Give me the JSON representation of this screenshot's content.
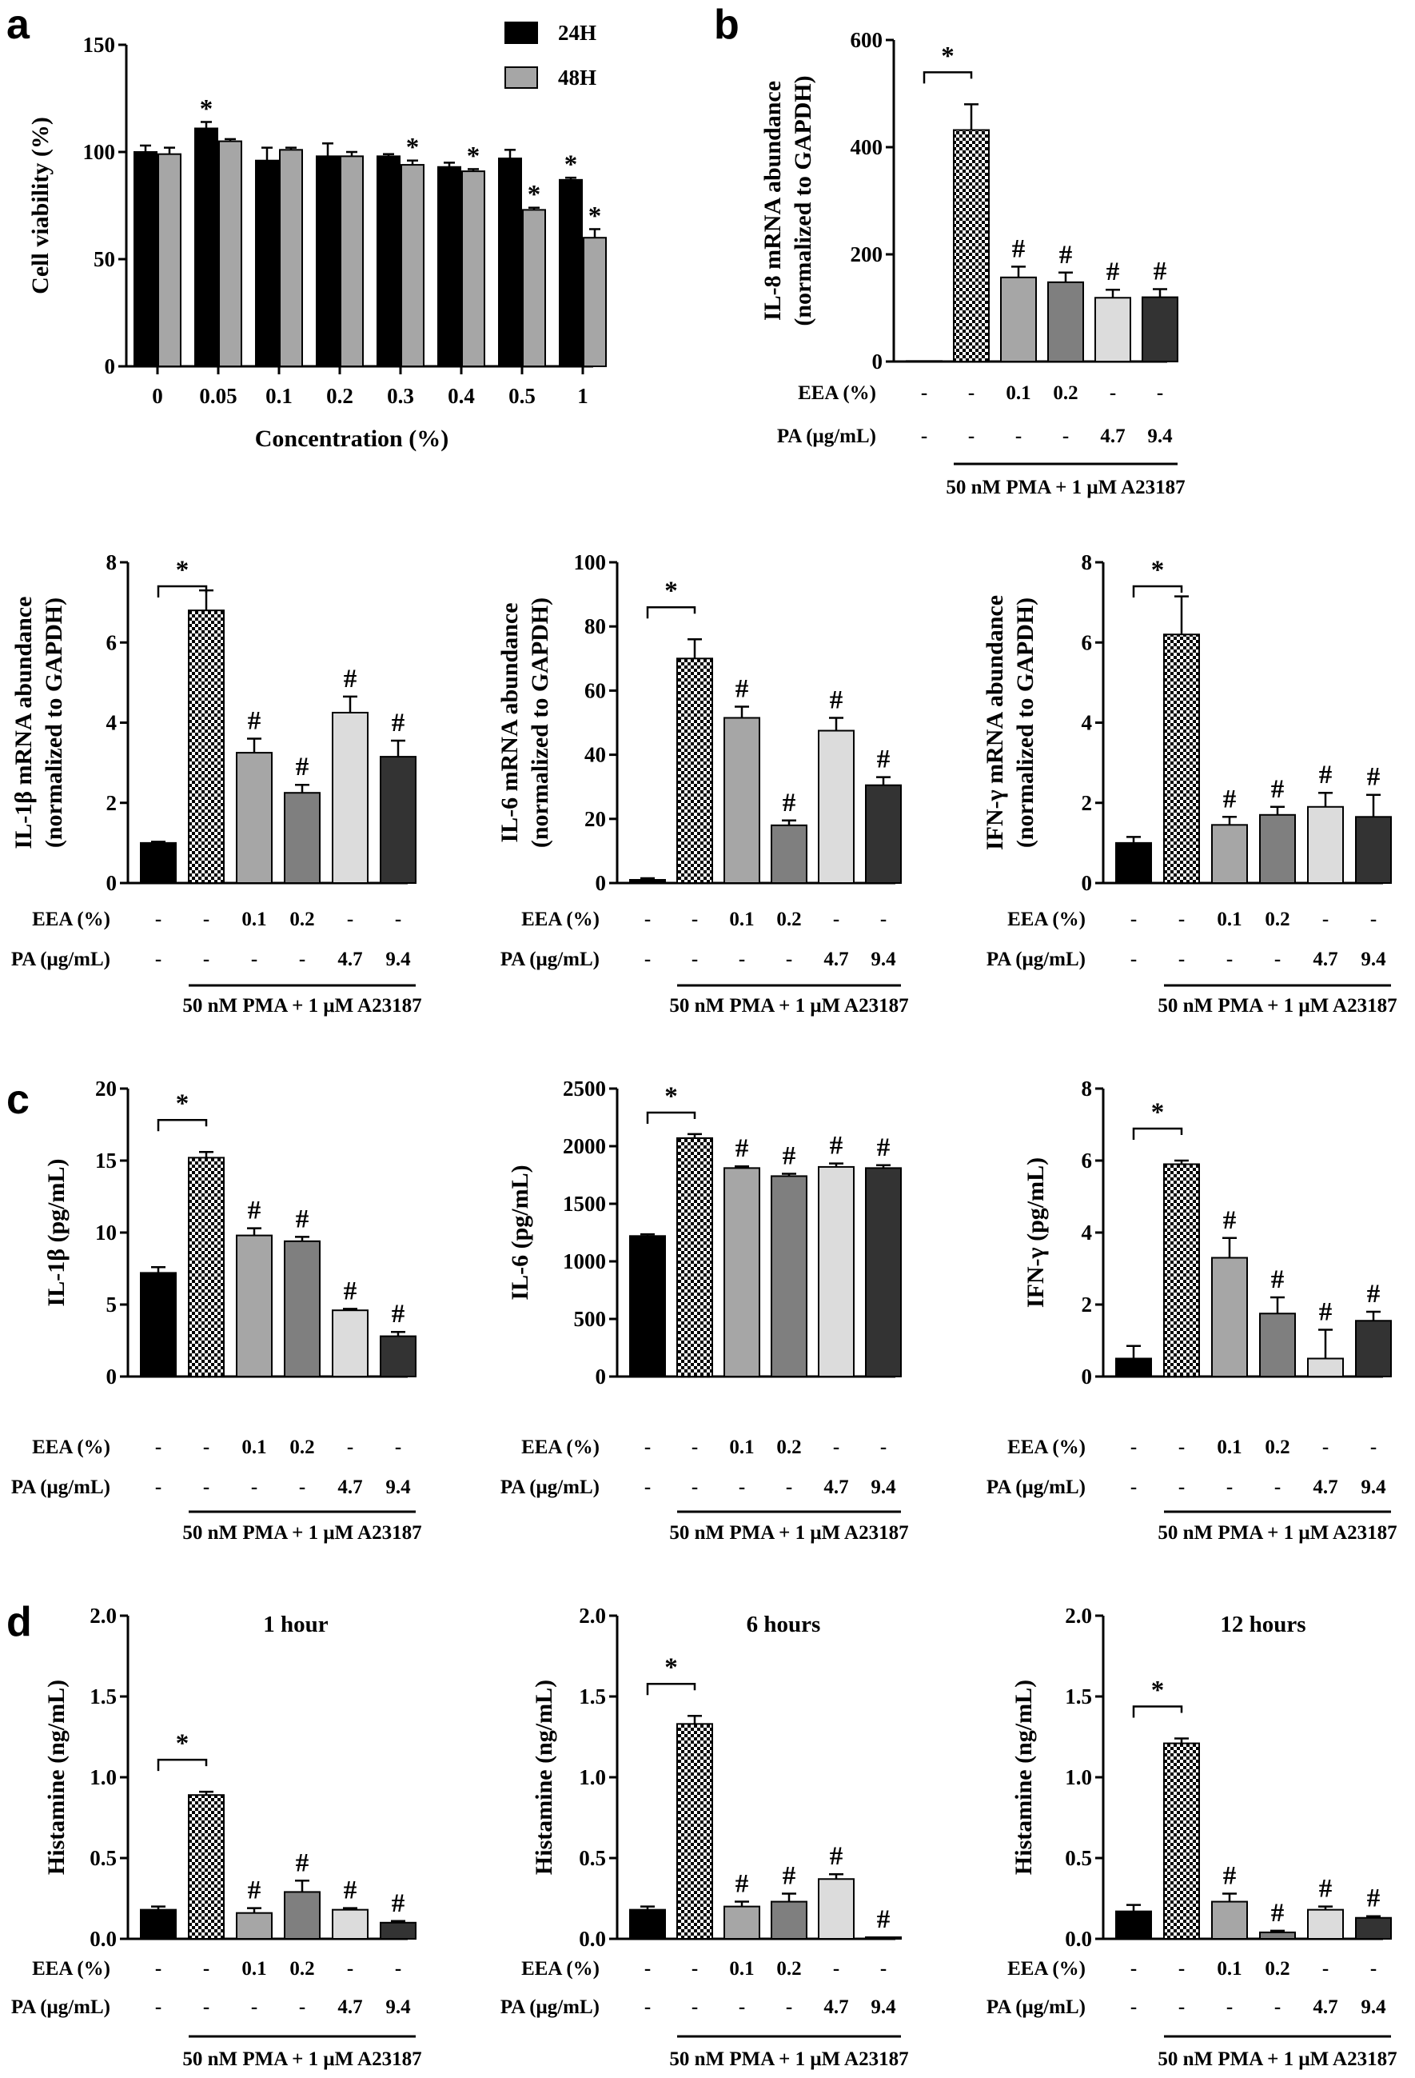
{
  "panel_labels": [
    "a",
    "b",
    "c",
    "d"
  ],
  "colors": {
    "c24": "#000000",
    "c48": "#a6a6a6",
    "bars": [
      "#000000",
      "pattern-checker",
      "#a6a6a6",
      "#7f7f7f",
      "#dcdcdc",
      "#333333"
    ]
  },
  "treatment_rows": {
    "eea_label": "EEA (%)",
    "pa_label": "PA (μg/mL)",
    "eea": [
      "-",
      "-",
      "0.1",
      "0.2",
      "-",
      "-"
    ],
    "pa": [
      "-",
      "-",
      "-",
      "-",
      "4.7",
      "9.4"
    ],
    "stimulus": "50 nM PMA + 1 μM A23187"
  },
  "chart_data": [
    {
      "id": "a",
      "type": "bar",
      "ylabel": "Cell viability (%)",
      "xlabel": "Concentration (%)",
      "ylim": [
        0,
        150
      ],
      "yticks": [
        "0",
        "50",
        "100",
        "150"
      ],
      "categories": [
        "0",
        "0.05",
        "0.1",
        "0.2",
        "0.3",
        "0.4",
        "0.5",
        "1"
      ],
      "series": [
        {
          "name": "24H",
          "values": [
            100,
            111,
            96,
            98,
            98,
            93,
            97,
            87
          ],
          "errors": [
            3,
            3,
            6,
            6,
            1,
            2,
            4,
            1
          ],
          "marks": [
            "",
            "*",
            "",
            "",
            "",
            "",
            "",
            "*"
          ]
        },
        {
          "name": "48H",
          "values": [
            99,
            105,
            101,
            98,
            94,
            91,
            73,
            60
          ],
          "errors": [
            3,
            1,
            1,
            2,
            2,
            1,
            1,
            4
          ],
          "marks": [
            "",
            "",
            "",
            "",
            "*",
            "*",
            "*",
            "*"
          ]
        }
      ]
    },
    {
      "id": "b1",
      "type": "bar",
      "ylabel": [
        "IL-8 mRNA abundance",
        "(normalized to GAPDH)"
      ],
      "ylim": [
        0,
        600
      ],
      "yticks": [
        "0",
        "200",
        "400",
        "600"
      ],
      "values": [
        1,
        432,
        157,
        148,
        119,
        120
      ],
      "errors": [
        0,
        48,
        20,
        18,
        15,
        15
      ],
      "marks": [
        "",
        "",
        "#",
        "#",
        "#",
        "#"
      ],
      "star": "*"
    },
    {
      "id": "b2",
      "type": "bar",
      "ylabel": [
        "IL-1β mRNA abundance",
        "(normalized to GAPDH)"
      ],
      "ylim": [
        0,
        8
      ],
      "yticks": [
        "0",
        "2",
        "4",
        "6",
        "8"
      ],
      "values": [
        1.0,
        6.8,
        3.25,
        2.25,
        4.25,
        3.15
      ],
      "errors": [
        0.03,
        0.5,
        0.35,
        0.2,
        0.4,
        0.4
      ],
      "marks": [
        "",
        "",
        "#",
        "#",
        "#",
        "#"
      ],
      "star": "*"
    },
    {
      "id": "b3",
      "type": "bar",
      "ylabel": [
        "IL-6 mRNA abundance",
        "(normalized to GAPDH)"
      ],
      "ylim": [
        0,
        100
      ],
      "yticks": [
        "0",
        "20",
        "40",
        "60",
        "80",
        "100"
      ],
      "values": [
        1,
        70,
        51.5,
        18,
        47.5,
        30.5
      ],
      "errors": [
        0.5,
        6,
        3.5,
        1.5,
        4,
        2.5
      ],
      "marks": [
        "",
        "",
        "#",
        "#",
        "#",
        "#"
      ],
      "star": "*"
    },
    {
      "id": "b4",
      "type": "bar",
      "ylabel": [
        "IFN-γ mRNA abundance",
        "(normalized to GAPDH)"
      ],
      "ylim": [
        0,
        8
      ],
      "yticks": [
        "0",
        "2",
        "4",
        "6",
        "8"
      ],
      "values": [
        1.0,
        6.2,
        1.45,
        1.7,
        1.9,
        1.65
      ],
      "errors": [
        0.15,
        0.95,
        0.2,
        0.2,
        0.35,
        0.55
      ],
      "marks": [
        "",
        "",
        "#",
        "#",
        "#",
        "#"
      ],
      "star": "*"
    },
    {
      "id": "c1",
      "type": "bar",
      "ylabel": [
        "IL-1β (pg/mL)"
      ],
      "ylim": [
        0,
        20
      ],
      "yticks": [
        "0",
        "5",
        "10",
        "15",
        "20"
      ],
      "values": [
        7.2,
        15.2,
        9.8,
        9.4,
        4.6,
        2.8
      ],
      "errors": [
        0.4,
        0.4,
        0.5,
        0.3,
        0.1,
        0.3
      ],
      "marks": [
        "",
        "",
        "#",
        "#",
        "#",
        "#"
      ],
      "star": "*"
    },
    {
      "id": "c2",
      "type": "bar",
      "ylabel": [
        "IL-6 (pg/mL)"
      ],
      "ylim": [
        0,
        2500
      ],
      "yticks": [
        "0",
        "500",
        "1000",
        "1500",
        "2000",
        "2500"
      ],
      "values": [
        1220,
        2070,
        1810,
        1740,
        1820,
        1810
      ],
      "errors": [
        15,
        35,
        15,
        20,
        30,
        25
      ],
      "marks": [
        "",
        "",
        "#",
        "#",
        "#",
        "#"
      ],
      "star": "*"
    },
    {
      "id": "c3",
      "type": "bar",
      "ylabel": [
        "IFN-γ (pg/mL)"
      ],
      "ylim": [
        0,
        8
      ],
      "yticks": [
        "0",
        "2",
        "4",
        "6",
        "8"
      ],
      "values": [
        0.5,
        5.9,
        3.3,
        1.75,
        0.5,
        1.55
      ],
      "errors": [
        0.35,
        0.1,
        0.55,
        0.45,
        0.8,
        0.25
      ],
      "marks": [
        "",
        "",
        "#",
        "#",
        "#",
        "#"
      ],
      "star": "*"
    },
    {
      "id": "d1",
      "type": "bar",
      "title": "1 hour",
      "ylabel": [
        "Histamine (ng/mL)"
      ],
      "ylim": [
        0,
        2.0
      ],
      "yticks": [
        "0.0",
        "0.5",
        "1.0",
        "1.5",
        "2.0"
      ],
      "values": [
        0.18,
        0.89,
        0.16,
        0.29,
        0.18,
        0.1
      ],
      "errors": [
        0.02,
        0.02,
        0.03,
        0.07,
        0.01,
        0.01
      ],
      "marks": [
        "",
        "",
        "#",
        "#",
        "#",
        "#"
      ],
      "star": "*"
    },
    {
      "id": "d2",
      "type": "bar",
      "title": "6 hours",
      "ylabel": [
        "Histamine (ng/mL)"
      ],
      "ylim": [
        0,
        2.0
      ],
      "yticks": [
        "0.0",
        "0.5",
        "1.0",
        "1.5",
        "2.0"
      ],
      "values": [
        0.18,
        1.33,
        0.2,
        0.23,
        0.37,
        0.01
      ],
      "errors": [
        0.02,
        0.05,
        0.03,
        0.05,
        0.03,
        0.0
      ],
      "marks": [
        "",
        "",
        "#",
        "#",
        "#",
        "#"
      ],
      "star": "*"
    },
    {
      "id": "d3",
      "type": "bar",
      "title": "12 hours",
      "ylabel": [
        "Histamine (ng/mL)"
      ],
      "ylim": [
        0,
        2.0
      ],
      "yticks": [
        "0.0",
        "0.5",
        "1.0",
        "1.5",
        "2.0"
      ],
      "values": [
        0.17,
        1.21,
        0.23,
        0.04,
        0.18,
        0.13
      ],
      "errors": [
        0.04,
        0.03,
        0.05,
        0.01,
        0.02,
        0.01
      ],
      "marks": [
        "",
        "",
        "#",
        "#",
        "#",
        "#"
      ],
      "star": "*"
    }
  ]
}
